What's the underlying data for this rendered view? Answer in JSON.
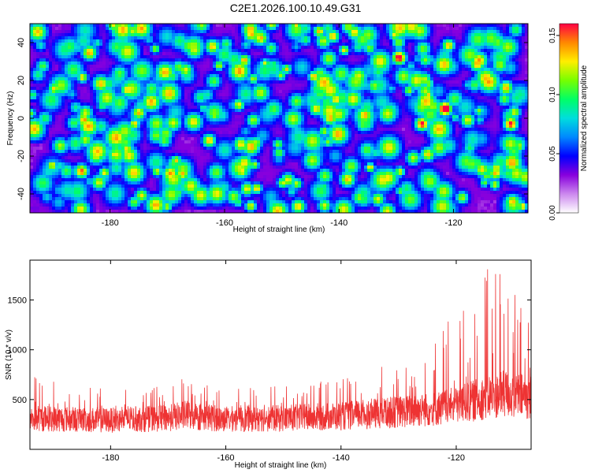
{
  "figure_title": "C2E1.2026.100.10.49.G31",
  "chart_data": [
    {
      "type": "heatmap",
      "xlabel": "Height of straight line (km)",
      "ylabel": "Frequency (Hz)",
      "xlim": [
        -194,
        -107
      ],
      "ylim": [
        -50,
        50
      ],
      "xticks": [
        -180,
        -160,
        -140,
        -120
      ],
      "yticks": [
        -40,
        -20,
        0,
        20,
        40
      ],
      "colorbar": {
        "label": "Normalized spectral amplitude",
        "range": [
          0,
          0.16
        ],
        "ticks": [
          "0.00",
          "0.05",
          "0.10",
          "0.15"
        ],
        "ticks_values": [
          0,
          0.05,
          0.1,
          0.15
        ],
        "colormap": [
          "#ffffff",
          "#cc88ee",
          "#8800dd",
          "#0000ff",
          "#0088ff",
          "#00dddd",
          "#00ff66",
          "#77ff00",
          "#ffee00",
          "#ff8800",
          "#ff0044"
        ]
      },
      "hotspots": [
        {
          "x": -121.5,
          "y": 5,
          "value": 0.16
        },
        {
          "x": -129.5,
          "y": 32,
          "value": 0.14
        },
        {
          "x": -125.5,
          "y": -3,
          "value": 0.13
        },
        {
          "x": -110,
          "y": -3,
          "value": 0.13
        },
        {
          "x": -185,
          "y": -28,
          "value": 0.12
        },
        {
          "x": -141.5,
          "y": 0,
          "value": 0.11
        },
        {
          "x": -144,
          "y": 5,
          "value": 0.1
        },
        {
          "x": -157,
          "y": -28,
          "value": 0.1
        },
        {
          "x": -176,
          "y": 46,
          "value": 0.09
        },
        {
          "x": -168,
          "y": 27,
          "value": 0.08
        }
      ]
    },
    {
      "type": "line",
      "xlabel": "Height of straight line (km)",
      "ylabel": "SNR (10 * v/v)",
      "xlim": [
        -194,
        -107
      ],
      "ylim": [
        0,
        1900
      ],
      "xticks": [
        -180,
        -160,
        -140,
        -120
      ],
      "yticks": [
        500,
        1000,
        1500
      ],
      "series": [
        {
          "color": "#ee3333",
          "envelope": {
            "x": [
              -194,
              -180,
              -170,
              -167,
              -160,
              -150,
              -140,
              -135,
              -130,
              -125,
              -120,
              -118,
              -115,
              -112,
              -110,
              -107
            ],
            "baseline": [
              300,
              280,
              300,
              330,
              290,
              300,
              320,
              340,
              360,
              380,
              420,
              450,
              500,
              530,
              520,
              500
            ],
            "peak": [
              750,
              600,
              650,
              760,
              600,
              650,
              700,
              800,
              900,
              1000,
              1400,
              1700,
              1800,
              1900,
              1600,
              1300
            ]
          }
        }
      ]
    }
  ]
}
